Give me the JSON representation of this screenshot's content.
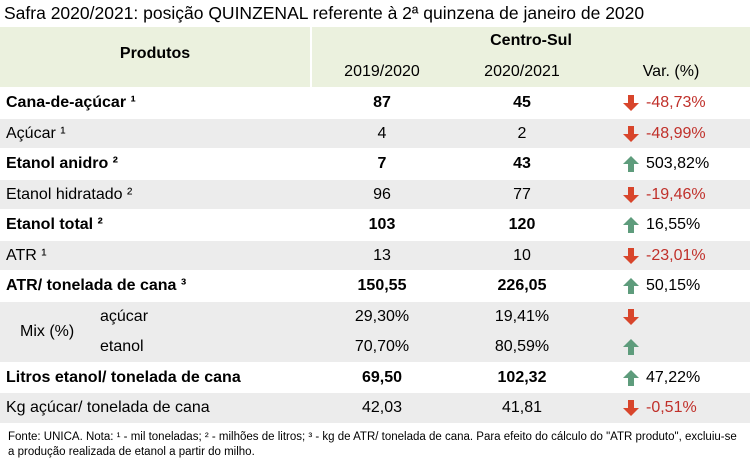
{
  "title": "Safra 2020/2021: posição QUINZENAL referente à 2ª quinzena de janeiro de 2020",
  "table": {
    "header": {
      "products": "Produtos",
      "region": "Centro-Sul",
      "columns": [
        "2019/2020",
        "2020/2021",
        "Var. (%)"
      ]
    },
    "rows": [
      {
        "label": "Cana-de-açúcar ¹",
        "values": [
          "87",
          "45"
        ],
        "var": "-48,73%",
        "trend": "down",
        "bold": true
      },
      {
        "label": "Açúcar ¹",
        "values": [
          "4",
          "2"
        ],
        "var": "-48,99%",
        "trend": "down",
        "bold": false
      },
      {
        "label": "Etanol anidro ²",
        "values": [
          "7",
          "43"
        ],
        "var": "503,82%",
        "trend": "up",
        "bold": true
      },
      {
        "label": "Etanol hidratado ²",
        "values": [
          "96",
          "77"
        ],
        "var": "-19,46%",
        "trend": "down",
        "bold": false
      },
      {
        "label": "Etanol total ²",
        "values": [
          "103",
          "120"
        ],
        "var": "16,55%",
        "trend": "up",
        "bold": true
      },
      {
        "label": "ATR ¹",
        "values": [
          "13",
          "10"
        ],
        "var": "-23,01%",
        "trend": "down",
        "bold": false
      },
      {
        "label": "ATR/ tonelada de cana ³",
        "values": [
          "150,55",
          "226,05"
        ],
        "var": "50,15%",
        "trend": "up",
        "bold": true
      },
      {
        "group": "Mix (%)",
        "items": [
          {
            "label": "açúcar",
            "values": [
              "29,30%",
              "19,41%"
            ],
            "trend": "down"
          },
          {
            "label": "etanol",
            "values": [
              "70,70%",
              "80,59%"
            ],
            "trend": "up"
          }
        ]
      },
      {
        "label": "Litros etanol/ tonelada de cana",
        "values": [
          "69,50",
          "102,32"
        ],
        "var": "47,22%",
        "trend": "up",
        "bold": true
      },
      {
        "label": "Kg açúcar/ tonelada de cana",
        "values": [
          "42,03",
          "41,81"
        ],
        "var": "-0,51%",
        "trend": "down",
        "bold": false
      }
    ]
  },
  "footnote": "Fonte: UNICA. Nota: ¹ - mil toneladas; ² - milhões de litros; ³ - kg de ATR/ tonelada de cana. Para efeito do cálculo do \"ATR produto\", excluiu-se a produção realizada de etanol a partir do milho."
}
